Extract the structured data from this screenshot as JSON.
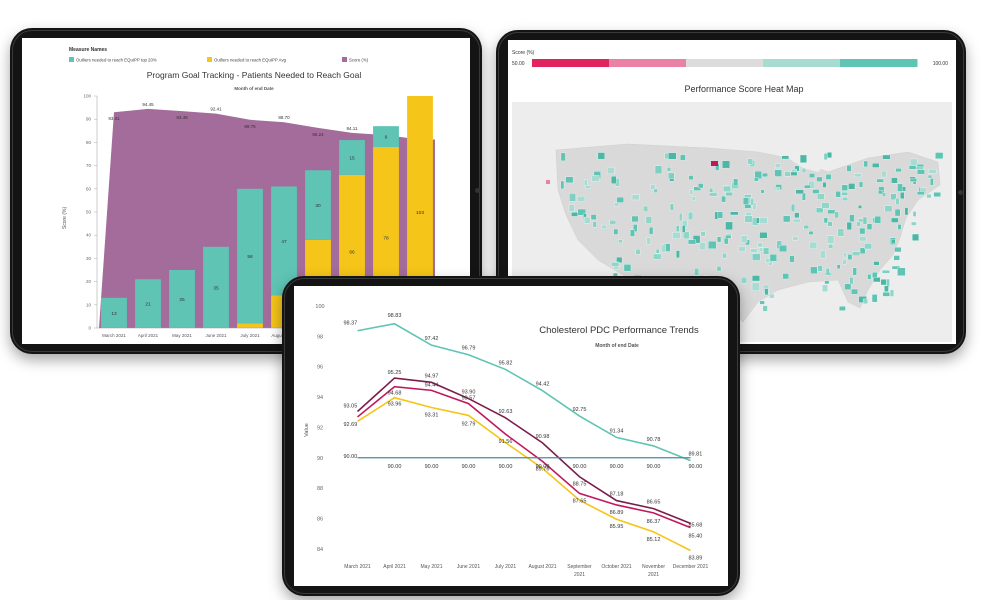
{
  "chart_data": [
    {
      "type": "bar",
      "title": "Program Goal Tracking - Patients Needed to Reach Goal",
      "subtitle": "Month of end Date",
      "legend_title": "Measure Names",
      "legend_placement": "top",
      "ylabel": "Score (%)",
      "ylim": [
        0,
        100
      ],
      "yticks": [
        "0",
        "10",
        "20",
        "30",
        "40",
        "50",
        "60",
        "70",
        "80",
        "90",
        "100"
      ],
      "categories": [
        "March 2021",
        "April 2021",
        "May 2021",
        "June 2021",
        "July 2021",
        "August 2021",
        "September 2021",
        "October 2021",
        "November 2021",
        "December 2021"
      ],
      "category_labels": [
        "March 2021",
        "April 2021",
        "May 2021",
        "June 2021",
        "July 2021",
        "August 2021",
        "",
        "",
        "",
        ""
      ],
      "series": [
        {
          "name": "Outliers needed to reach EQuIPP top 20%",
          "color": "#5fc4b4",
          "values": [
            13,
            21,
            25,
            35,
            58,
            47,
            30,
            15,
            9,
            null
          ],
          "labels": [
            "13",
            "21",
            "25",
            "35",
            "58",
            "47",
            "30",
            "15",
            "9",
            ""
          ]
        },
        {
          "name": "Outliers needed to reach EQuIPP Avg",
          "color": "#f5c51a",
          "values": [
            0,
            0,
            0,
            0,
            2,
            14,
            38,
            66,
            78,
            103
          ],
          "labels": [
            "",
            "",
            "",
            "",
            "",
            "14",
            "",
            "66",
            "78",
            "103"
          ]
        },
        {
          "name": "Score (%)",
          "color": "#a36c9a",
          "values": [
            93.01,
            94.45,
            93.49,
            92.41,
            89.75,
            88.7,
            86.24,
            84.11,
            83.14,
            81.25
          ],
          "labels": [
            "93.01",
            "94.45",
            "93.49",
            "92.41",
            "89.75",
            "88.70",
            "86.24",
            "84.11",
            "83.14",
            "81.25"
          ]
        }
      ]
    },
    {
      "type": "heatmap",
      "title": "Performance Score Heat Map",
      "legend_title": "Score (%)",
      "legend_min": "50.00",
      "legend_max": "100.00",
      "legend_colors": [
        "#e0245e",
        "#e882a6",
        "#dcdcdc",
        "#a8dcd3",
        "#5fc4b4"
      ]
    },
    {
      "type": "line",
      "title": "Cholesterol PDC Performance Trends",
      "subtitle": "Month of end Date",
      "ylabel": "Value",
      "ylim": [
        83,
        100
      ],
      "yticks": [
        "84",
        "86",
        "88",
        "90",
        "92",
        "94",
        "96",
        "98",
        "100"
      ],
      "categories": [
        [
          "March 2021"
        ],
        [
          "April 2021"
        ],
        [
          "May 2021"
        ],
        [
          "June 2021"
        ],
        [
          "July 2021"
        ],
        [
          "August 2021"
        ],
        [
          "September",
          "2021"
        ],
        [
          "October 2021"
        ],
        [
          "November",
          "2021"
        ],
        [
          "December 2021"
        ]
      ],
      "series": [
        {
          "color": "#5fc4b4",
          "values": [
            98.37,
            98.83,
            97.42,
            96.79,
            95.82,
            94.42,
            92.75,
            91.34,
            90.78,
            89.81
          ],
          "labels": [
            "98.37",
            "98.83",
            "97.42",
            "96.79",
            "95.82",
            "94.42",
            "92.75",
            "91.34",
            "90.78",
            "89.81"
          ]
        },
        {
          "color": "#7a1f4d",
          "values": [
            93.05,
            95.25,
            94.97,
            93.9,
            92.63,
            90.98,
            88.75,
            87.18,
            86.65,
            85.68
          ],
          "labels": [
            "93.05",
            "95.25",
            "94.97",
            "93.90",
            "92.63",
            "90.98",
            "88.75",
            "87.18",
            "86.65",
            "85.68"
          ]
        },
        {
          "color": "#c2185b",
          "values": [
            92.69,
            94.68,
            94.44,
            93.57,
            91.56,
            89.76,
            87.65,
            86.89,
            86.37,
            85.4
          ],
          "labels": [
            "92.69",
            "94.68",
            "94.44",
            "93.57",
            "91.56",
            "89.76",
            "87.65",
            "86.89",
            "86.37",
            "85.40"
          ]
        },
        {
          "color": "#f5c51a",
          "values": [
            null,
            93.96,
            93.31,
            92.79,
            null,
            null,
            null,
            85.95,
            85.12,
            83.89
          ],
          "labels": [
            "",
            "93.96",
            "93.31",
            "92.79",
            "",
            "",
            "",
            "85.95",
            "85.12",
            "83.89"
          ]
        },
        {
          "color": "#4a8a9e",
          "values": [
            90,
            90,
            90,
            90,
            90,
            90,
            90,
            90,
            90,
            90
          ],
          "labels": [
            "90.00",
            "90.00",
            "90.00",
            "90.00",
            "90.00",
            "90.00",
            "90.00",
            "90.00",
            "90.00",
            "90.00"
          ]
        }
      ]
    }
  ]
}
